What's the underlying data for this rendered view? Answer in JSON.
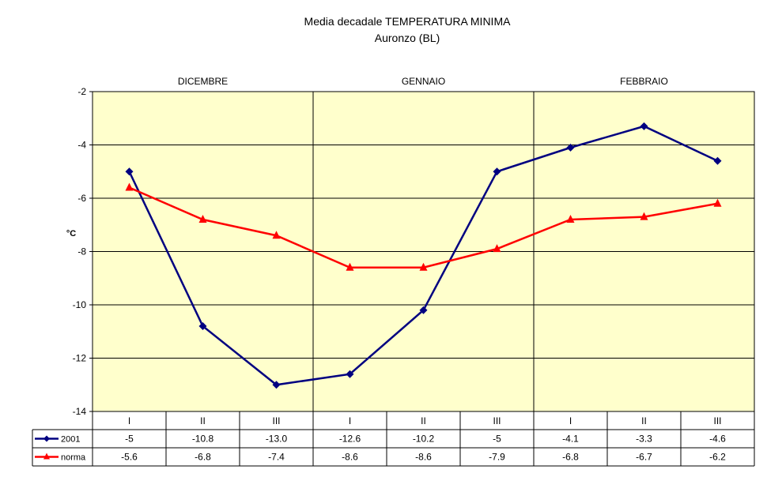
{
  "title": "Media decadale TEMPERATURA MINIMA",
  "subtitle": "Auronzo (BL)",
  "chart_data": {
    "type": "line",
    "title": "Media decadale TEMPERATURA MINIMA",
    "subtitle": "Auronzo (BL)",
    "ylabel": "°C",
    "xlabel": "",
    "ylim": [
      -14,
      -2
    ],
    "yticks": [
      -2,
      -4,
      -6,
      -8,
      -10,
      -12,
      -14
    ],
    "months": [
      "DICEMBRE",
      "GENNAIO",
      "FEBBRAIO"
    ],
    "categories": [
      "I",
      "II",
      "III",
      "I",
      "II",
      "III",
      "I",
      "II",
      "III"
    ],
    "grid": true,
    "legend": "data-table",
    "plot_background": "#ffffcc",
    "series": [
      {
        "name": "2001",
        "color": "#000080",
        "marker": "diamond",
        "values": [
          -5,
          -10.8,
          -13.0,
          -12.6,
          -10.2,
          -5,
          -4.1,
          -3.3,
          -4.6
        ],
        "labels": [
          "-5",
          "-10.8",
          "-13.0",
          "-12.6",
          "-10.2",
          "-5",
          "-4.1",
          "-3.3",
          "-4.6"
        ]
      },
      {
        "name": "norma",
        "color": "#ff0000",
        "marker": "triangle",
        "values": [
          -5.6,
          -6.8,
          -7.4,
          -8.6,
          -8.6,
          -7.9,
          -6.8,
          -6.7,
          -6.2
        ],
        "labels": [
          "-5.6",
          "-6.8",
          "-7.4",
          "-8.6",
          "-8.6",
          "-7.9",
          "-6.8",
          "-6.7",
          "-6.2"
        ]
      }
    ]
  }
}
